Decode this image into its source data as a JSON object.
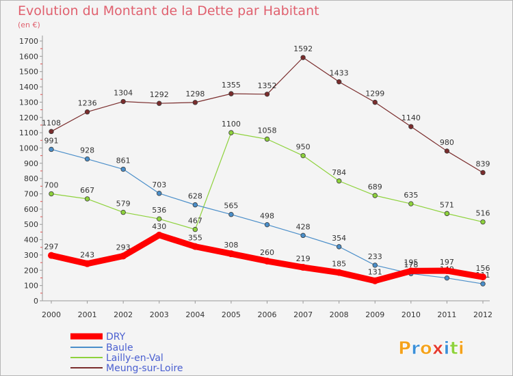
{
  "chart_data": {
    "type": "line",
    "title": "Evolution du Montant de la Dette par Habitant",
    "subtitle": "(en €)",
    "xlabel": "",
    "ylabel": "",
    "ylim": [
      0,
      1700
    ],
    "grid": false,
    "legend_position": "bottom-left",
    "categories": [
      "2000",
      "2001",
      "2002",
      "2003",
      "2004",
      "2005",
      "2006",
      "2007",
      "2008",
      "2009",
      "2010",
      "2011",
      "2012"
    ],
    "y_ticks": [
      0,
      100,
      200,
      300,
      400,
      500,
      600,
      700,
      800,
      900,
      1000,
      1100,
      1200,
      1300,
      1400,
      1500,
      1600,
      1700
    ],
    "series": [
      {
        "name": "DRY",
        "color": "#ff0000",
        "values": [
          297,
          243,
          293,
          430,
          355,
          308,
          260,
          219,
          185,
          131,
          195,
          197,
          156
        ]
      },
      {
        "name": "Baule",
        "color": "#4a8ec9",
        "values": [
          991,
          928,
          861,
          703,
          628,
          565,
          498,
          428,
          354,
          233,
          178,
          149,
          111
        ]
      },
      {
        "name": "Lailly-en-Val",
        "color": "#8ed23c",
        "values": [
          700,
          667,
          579,
          536,
          467,
          1100,
          1058,
          950,
          784,
          689,
          635,
          571,
          516
        ]
      },
      {
        "name": "Meung-sur-Loire",
        "color": "#7a2c2c",
        "values": [
          1108,
          1236,
          1304,
          1292,
          1298,
          1355,
          1352,
          1592,
          1433,
          1299,
          1140,
          980,
          839
        ]
      }
    ]
  },
  "branding": {
    "logo_text": "Proxiti",
    "logo_colors": [
      "#f4a21b",
      "#3a8fd8",
      "#f4a21b",
      "#e53a2f",
      "#3a8fd8",
      "#8ed23c",
      "#f4a21b"
    ]
  }
}
